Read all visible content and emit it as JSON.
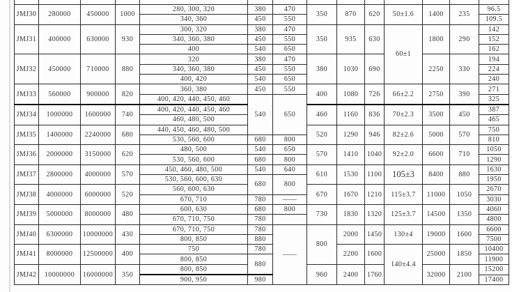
{
  "table": {
    "rows": [
      {
        "cells": [
          {
            "t": "JMJ30",
            "rs": 2,
            "name": "model-cell"
          },
          {
            "t": "280000",
            "rs": 2
          },
          {
            "t": "450000",
            "rs": 2
          },
          {
            "t": "1000",
            "rs": 2
          },
          {
            "t": "280、300、320",
            "name": "sizes-cell"
          },
          {
            "t": "380"
          },
          {
            "t": "470"
          },
          {
            "t": "350",
            "rs": 2
          },
          {
            "t": "870",
            "rs": 2
          },
          {
            "t": "620",
            "rs": 2
          },
          {
            "t": "50±1.6",
            "rs": 2,
            "name": "tolerance-cell"
          },
          {
            "t": "1400",
            "rs": 2
          },
          {
            "t": "235",
            "rs": 2
          },
          {
            "t": "96.5"
          }
        ]
      },
      {
        "cells": [
          {
            "t": "340、360",
            "name": "sizes-cell"
          },
          {
            "t": "450"
          },
          {
            "t": "550"
          },
          {
            "t": "109.5"
          }
        ]
      },
      {
        "cells": [
          {
            "t": "JMJ31",
            "rs": 3,
            "name": "model-cell"
          },
          {
            "t": "400000",
            "rs": 3
          },
          {
            "t": "630000",
            "rs": 3
          },
          {
            "t": "930",
            "rs": 3
          },
          {
            "t": "300、320",
            "name": "sizes-cell"
          },
          {
            "t": "380"
          },
          {
            "t": "470"
          },
          {
            "t": "350",
            "rs": 3
          },
          {
            "t": "935",
            "rs": 3
          },
          {
            "t": "630",
            "rs": 3
          },
          {
            "t": "60±1",
            "rs": 6,
            "name": "tolerance-cell"
          },
          {
            "t": "1800",
            "rs": 3
          },
          {
            "t": "290",
            "rs": 3
          },
          {
            "t": "142"
          }
        ]
      },
      {
        "cells": [
          {
            "t": "340、360、380",
            "name": "sizes-cell"
          },
          {
            "t": "450"
          },
          {
            "t": "550"
          },
          {
            "t": "152"
          }
        ]
      },
      {
        "cells": [
          {
            "t": "400",
            "name": "sizes-cell"
          },
          {
            "t": "540"
          },
          {
            "t": "650"
          },
          {
            "t": "162"
          }
        ]
      },
      {
        "cells": [
          {
            "t": "JMJ32",
            "rs": 3,
            "name": "model-cell"
          },
          {
            "t": "450000",
            "rs": 3
          },
          {
            "t": "710000",
            "rs": 3
          },
          {
            "t": "880",
            "rs": 3
          },
          {
            "t": "320",
            "name": "sizes-cell"
          },
          {
            "t": "380"
          },
          {
            "t": "470"
          },
          {
            "t": "380",
            "rs": 3
          },
          {
            "t": "1030",
            "rs": 3
          },
          {
            "t": "690",
            "rs": 3
          },
          {
            "t": "2250",
            "rs": 3
          },
          {
            "t": "330",
            "rs": 3
          },
          {
            "t": "194"
          }
        ]
      },
      {
        "cells": [
          {
            "t": "340、360、380",
            "name": "sizes-cell"
          },
          {
            "t": "450"
          },
          {
            "t": "550"
          },
          {
            "t": "224"
          }
        ]
      },
      {
        "cells": [
          {
            "t": "400、420",
            "name": "sizes-cell"
          },
          {
            "t": "540"
          },
          {
            "t": "650"
          },
          {
            "t": "240"
          }
        ]
      },
      {
        "cells": [
          {
            "t": "JMJ33",
            "rs": 2,
            "name": "model-cell"
          },
          {
            "t": "560000",
            "rs": 2
          },
          {
            "t": "900000",
            "rs": 2
          },
          {
            "t": "820",
            "rs": 2
          },
          {
            "t": "360、380",
            "name": "sizes-cell"
          },
          {
            "t": "450"
          },
          {
            "t": "550"
          },
          {
            "t": "400",
            "rs": 2
          },
          {
            "t": "1080",
            "rs": 2
          },
          {
            "t": "726",
            "rs": 2
          },
          {
            "t": "66±2.2",
            "rs": 2,
            "name": "tolerance-cell"
          },
          {
            "t": "2750",
            "rs": 2
          },
          {
            "t": "390",
            "rs": 2
          },
          {
            "t": "271"
          }
        ]
      },
      {
        "cells": [
          {
            "t": "400、420、440、450、460",
            "name": "sizes-cell"
          },
          {
            "t": "540",
            "rs": 4
          },
          {
            "t": "650",
            "rs": 4
          },
          {
            "t": "325"
          }
        ]
      },
      {
        "cells": [
          {
            "t": "JMJ34",
            "rs": 2,
            "name": "model-cell"
          },
          {
            "t": "1000000",
            "rs": 2
          },
          {
            "t": "1600000",
            "rs": 2
          },
          {
            "t": "740",
            "rs": 2
          },
          {
            "t": "400、420、440、450、460",
            "name": "sizes-cell"
          },
          {
            "t": "460",
            "rs": 2
          },
          {
            "t": "1160",
            "rs": 2
          },
          {
            "t": "836",
            "rs": 2
          },
          {
            "t": "70±2.3",
            "rs": 2,
            "name": "tolerance-cell"
          },
          {
            "t": "3500",
            "rs": 2
          },
          {
            "t": "450",
            "rs": 2
          },
          {
            "t": "387"
          }
        ]
      },
      {
        "cells": [
          {
            "t": "460、480、500",
            "name": "sizes-cell"
          },
          {
            "t": "465"
          }
        ]
      },
      {
        "cells": [
          {
            "t": "JMJ35",
            "rs": 2,
            "name": "model-cell"
          },
          {
            "t": "1400000",
            "rs": 2
          },
          {
            "t": "2240000",
            "rs": 2
          },
          {
            "t": "680",
            "rs": 2
          },
          {
            "t": "440、450、460、480、500",
            "name": "sizes-cell"
          },
          {
            "t": "520",
            "rs": 2
          },
          {
            "t": "1290",
            "rs": 2
          },
          {
            "t": "946",
            "rs": 2
          },
          {
            "t": "82±2.6",
            "rs": 2,
            "name": "tolerance-cell"
          },
          {
            "t": "5000",
            "rs": 2
          },
          {
            "t": "570",
            "rs": 2
          },
          {
            "t": "750"
          }
        ]
      },
      {
        "cells": [
          {
            "t": "530、560、600",
            "name": "sizes-cell"
          },
          {
            "t": "680"
          },
          {
            "t": "800"
          },
          {
            "t": "810"
          }
        ]
      },
      {
        "cells": [
          {
            "t": "JMJ36",
            "rs": 2,
            "name": "model-cell"
          },
          {
            "t": "2000000",
            "rs": 2
          },
          {
            "t": "3150000",
            "rs": 2
          },
          {
            "t": "620",
            "rs": 2
          },
          {
            "t": "480、500",
            "name": "sizes-cell"
          },
          {
            "t": "540"
          },
          {
            "t": "650"
          },
          {
            "t": "570",
            "rs": 2
          },
          {
            "t": "1410",
            "rs": 2
          },
          {
            "t": "1040",
            "rs": 2
          },
          {
            "t": "92±2.0",
            "rs": 2,
            "name": "tolerance-cell"
          },
          {
            "t": "6600",
            "rs": 2
          },
          {
            "t": "710",
            "rs": 2
          },
          {
            "t": "1050"
          }
        ]
      },
      {
        "cells": [
          {
            "t": "530、560、600",
            "name": "sizes-cell"
          },
          {
            "t": "680"
          },
          {
            "t": "800"
          },
          {
            "t": "1290"
          }
        ]
      },
      {
        "cells": [
          {
            "t": "JMJ37",
            "rs": 2,
            "name": "model-cell"
          },
          {
            "t": "2800000",
            "rs": 2
          },
          {
            "t": "4000000",
            "rs": 2
          },
          {
            "t": "570",
            "rs": 2
          },
          {
            "t": "450、460、480、500",
            "name": "sizes-cell"
          },
          {
            "t": "540"
          },
          {
            "t": "640"
          },
          {
            "t": "610",
            "rs": 2
          },
          {
            "t": "1530",
            "rs": 2
          },
          {
            "t": "1100",
            "rs": 2
          },
          {
            "t": "105±3",
            "rs": 2,
            "name": "tolerance-cell"
          },
          {
            "t": "8400",
            "rs": 2
          },
          {
            "t": "880",
            "rs": 2
          },
          {
            "t": "1630"
          }
        ]
      },
      {
        "cells": [
          {
            "t": "530、560、600、630",
            "name": "sizes-cell"
          },
          {
            "t": "680",
            "rs": 2
          },
          {
            "t": "800",
            "rs": 2
          },
          {
            "t": "1950"
          }
        ]
      },
      {
        "cells": [
          {
            "t": "JMJ38",
            "rs": 2,
            "name": "model-cell"
          },
          {
            "t": "4000000",
            "rs": 2
          },
          {
            "t": "6000000",
            "rs": 2
          },
          {
            "t": "520",
            "rs": 2
          },
          {
            "t": "560、600、630",
            "name": "sizes-cell"
          },
          {
            "t": "670",
            "rs": 2
          },
          {
            "t": "1670",
            "rs": 2
          },
          {
            "t": "1210",
            "rs": 2
          },
          {
            "t": "115±3.7",
            "rs": 2,
            "name": "tolerance-cell"
          },
          {
            "t": "11000",
            "rs": 2
          },
          {
            "t": "1050",
            "rs": 2
          },
          {
            "t": "2670"
          }
        ]
      },
      {
        "cells": [
          {
            "t": "670、710",
            "name": "sizes-cell"
          },
          {
            "t": "780"
          },
          {
            "t": "——",
            "name": "dash-cell"
          },
          {
            "t": "3030"
          }
        ]
      },
      {
        "cells": [
          {
            "t": "JMJ39",
            "rs": 2,
            "name": "model-cell"
          },
          {
            "t": "5000000",
            "rs": 2
          },
          {
            "t": "8000000",
            "rs": 2
          },
          {
            "t": "480",
            "rs": 2
          },
          {
            "t": "600、630",
            "name": "sizes-cell"
          },
          {
            "t": "680"
          },
          {
            "t": "800"
          },
          {
            "t": "730",
            "rs": 2
          },
          {
            "t": "1830",
            "rs": 2
          },
          {
            "t": "1320",
            "rs": 2
          },
          {
            "t": "125±3.7",
            "rs": 2,
            "name": "tolerance-cell"
          },
          {
            "t": "14500",
            "rs": 2
          },
          {
            "t": "1350",
            "rs": 2
          },
          {
            "t": "4060"
          }
        ]
      },
      {
        "cells": [
          {
            "t": "670、710、750",
            "name": "sizes-cell"
          },
          {
            "t": "780"
          },
          {
            "t": "",
            "name": "empty-cell"
          },
          {
            "t": "4800"
          }
        ]
      },
      {
        "cells": [
          {
            "t": "JMJ40",
            "rs": 2,
            "name": "model-cell"
          },
          {
            "t": "6300000",
            "rs": 2
          },
          {
            "t": "10000000",
            "rs": 2
          },
          {
            "t": "430",
            "rs": 2
          },
          {
            "t": "670、710、750",
            "name": "sizes-cell"
          },
          {
            "t": "780"
          },
          {
            "t": "——",
            "rs": 6,
            "name": "dash-cell"
          },
          {
            "t": "800",
            "rs": 4
          },
          {
            "t": "2000",
            "rs": 2
          },
          {
            "t": "1450",
            "rs": 2
          },
          {
            "t": "130±4",
            "rs": 2,
            "name": "tolerance-cell"
          },
          {
            "t": "19000",
            "rs": 2
          },
          {
            "t": "1600",
            "rs": 2
          },
          {
            "t": "6600"
          }
        ]
      },
      {
        "cells": [
          {
            "t": "800、850",
            "name": "sizes-cell"
          },
          {
            "t": "880"
          },
          {
            "t": "7500"
          }
        ]
      },
      {
        "cells": [
          {
            "t": "JMJ41",
            "rs": 2,
            "name": "model-cell"
          },
          {
            "t": "8000000",
            "rs": 2
          },
          {
            "t": "12500000",
            "rs": 2
          },
          {
            "t": "400",
            "rs": 2
          },
          {
            "t": "750",
            "name": "sizes-cell"
          },
          {
            "t": "780"
          },
          {
            "t": "2200",
            "rs": 2
          },
          {
            "t": "1600",
            "rs": 2
          },
          {
            "t": "140±4.4",
            "rs": 4,
            "name": "tolerance-cell"
          },
          {
            "t": "25000",
            "rs": 2
          },
          {
            "t": "1850",
            "rs": 2
          },
          {
            "t": "10400"
          }
        ]
      },
      {
        "cells": [
          {
            "t": "800、850",
            "name": "sizes-cell"
          },
          {
            "t": "880",
            "rs": 2
          },
          {
            "t": "11900"
          }
        ]
      },
      {
        "cells": [
          {
            "t": "JMJ42",
            "rs": 2,
            "name": "model-cell"
          },
          {
            "t": "10000000",
            "rs": 2
          },
          {
            "t": "16000000",
            "rs": 2
          },
          {
            "t": "350",
            "rs": 2
          },
          {
            "t": "800、850",
            "name": "sizes-cell"
          },
          {
            "t": "960",
            "rs": 2
          },
          {
            "t": "2400",
            "rs": 2
          },
          {
            "t": "1760",
            "rs": 2
          },
          {
            "t": "32000",
            "rs": 2
          },
          {
            "t": "2100",
            "rs": 2
          },
          {
            "t": "15200"
          }
        ]
      },
      {
        "cells": [
          {
            "t": "900、950",
            "name": "sizes-cell"
          },
          {
            "t": "980"
          },
          {
            "t": "17400"
          }
        ]
      }
    ]
  }
}
